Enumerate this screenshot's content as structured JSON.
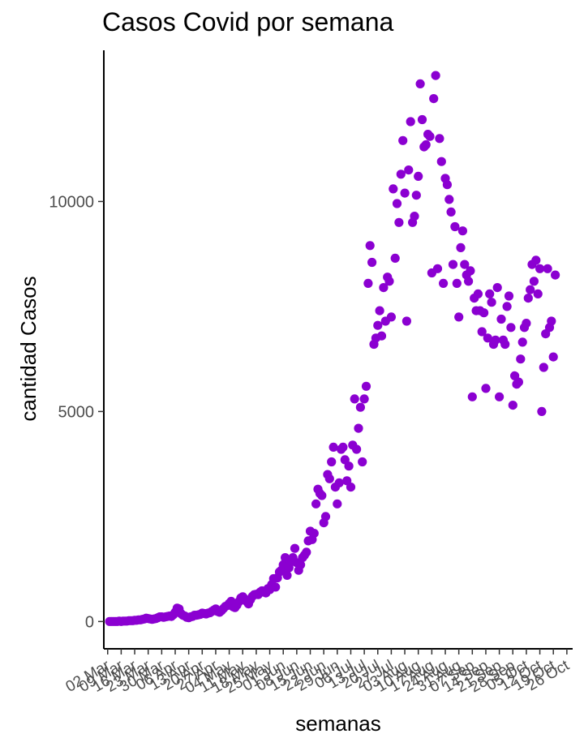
{
  "chart_data": {
    "type": "scatter",
    "title": "Casos Covid por semana",
    "xlabel": "semanas",
    "ylabel": "cantidad Casos",
    "point_color": "#8B00D1",
    "grid": false,
    "legend": "none",
    "xlim": [
      "2020-02-29",
      "2020-10-29"
    ],
    "ylim": [
      -650,
      13600
    ],
    "y_ticks": [
      0,
      5000,
      10000
    ],
    "y_tick_labels": [
      "0",
      "5000",
      "10000"
    ],
    "x_ticks": [
      "2020-03-02",
      "2020-03-09",
      "2020-03-16",
      "2020-03-23",
      "2020-03-30",
      "2020-04-06",
      "2020-04-13",
      "2020-04-20",
      "2020-04-27",
      "2020-05-04",
      "2020-05-11",
      "2020-05-18",
      "2020-05-25",
      "2020-06-01",
      "2020-06-08",
      "2020-06-15",
      "2020-06-22",
      "2020-06-29",
      "2020-07-06",
      "2020-07-13",
      "2020-07-20",
      "2020-07-27",
      "2020-08-03",
      "2020-08-10",
      "2020-08-17",
      "2020-08-24",
      "2020-08-31",
      "2020-09-07",
      "2020-09-14",
      "2020-09-21",
      "2020-09-28",
      "2020-10-05",
      "2020-10-12",
      "2020-10-19",
      "2020-10-26"
    ],
    "x_tick_labels": [
      "02 Mar",
      "09 Mar",
      "16 Mar",
      "23 Mar",
      "30 Mar",
      "06 Apr",
      "13 Apr",
      "20 Apr",
      "27 Apr",
      "04 May",
      "11 May",
      "18 May",
      "25 May",
      "01 Jun",
      "08 Jun",
      "15 Jun",
      "22 Jun",
      "29 Jun",
      "06 Jul",
      "13 Jul",
      "20 Jul",
      "27 Jul",
      "03 Aug",
      "10 Aug",
      "17 Aug",
      "24 Aug",
      "31 Aug",
      "07 Sep",
      "14 Sep",
      "21 Sep",
      "28 Sep",
      "05 Oct",
      "12 Oct",
      "19 Oct",
      "26 Oct"
    ],
    "series": [
      {
        "points": [
          [
            "2020-03-03",
            0
          ],
          [
            "2020-03-04",
            0
          ],
          [
            "2020-03-05",
            0
          ],
          [
            "2020-03-06",
            0
          ],
          [
            "2020-03-07",
            0
          ],
          [
            "2020-03-08",
            10
          ],
          [
            "2020-03-09",
            0
          ],
          [
            "2020-03-10",
            10
          ],
          [
            "2020-03-11",
            10
          ],
          [
            "2020-03-12",
            10
          ],
          [
            "2020-03-13",
            20
          ],
          [
            "2020-03-14",
            20
          ],
          [
            "2020-03-15",
            20
          ],
          [
            "2020-03-16",
            30
          ],
          [
            "2020-03-17",
            30
          ],
          [
            "2020-03-18",
            40
          ],
          [
            "2020-03-19",
            40
          ],
          [
            "2020-03-20",
            50
          ],
          [
            "2020-03-21",
            60
          ],
          [
            "2020-03-22",
            80
          ],
          [
            "2020-03-23",
            70
          ],
          [
            "2020-03-24",
            60
          ],
          [
            "2020-03-25",
            50
          ],
          [
            "2020-03-26",
            60
          ],
          [
            "2020-03-27",
            70
          ],
          [
            "2020-03-28",
            90
          ],
          [
            "2020-03-29",
            110
          ],
          [
            "2020-03-30",
            110
          ],
          [
            "2020-03-31",
            100
          ],
          [
            "2020-04-01",
            110
          ],
          [
            "2020-04-02",
            120
          ],
          [
            "2020-04-03",
            130
          ],
          [
            "2020-04-04",
            120
          ],
          [
            "2020-04-05",
            160
          ],
          [
            "2020-04-06",
            220
          ],
          [
            "2020-04-07",
            320
          ],
          [
            "2020-04-08",
            300
          ],
          [
            "2020-04-09",
            190
          ],
          [
            "2020-04-10",
            150
          ],
          [
            "2020-04-11",
            130
          ],
          [
            "2020-04-12",
            100
          ],
          [
            "2020-04-13",
            90
          ],
          [
            "2020-04-14",
            110
          ],
          [
            "2020-04-15",
            120
          ],
          [
            "2020-04-16",
            150
          ],
          [
            "2020-04-17",
            150
          ],
          [
            "2020-04-18",
            160
          ],
          [
            "2020-04-19",
            170
          ],
          [
            "2020-04-20",
            200
          ],
          [
            "2020-04-21",
            190
          ],
          [
            "2020-04-22",
            180
          ],
          [
            "2020-04-23",
            200
          ],
          [
            "2020-04-24",
            210
          ],
          [
            "2020-04-25",
            240
          ],
          [
            "2020-04-26",
            270
          ],
          [
            "2020-04-27",
            300
          ],
          [
            "2020-04-28",
            240
          ],
          [
            "2020-04-29",
            220
          ],
          [
            "2020-04-30",
            260
          ],
          [
            "2020-05-01",
            310
          ],
          [
            "2020-05-02",
            360
          ],
          [
            "2020-05-03",
            380
          ],
          [
            "2020-05-04",
            430
          ],
          [
            "2020-05-05",
            480
          ],
          [
            "2020-05-06",
            350
          ],
          [
            "2020-05-07",
            330
          ],
          [
            "2020-05-08",
            390
          ],
          [
            "2020-05-09",
            470
          ],
          [
            "2020-05-10",
            560
          ],
          [
            "2020-05-11",
            590
          ],
          [
            "2020-05-12",
            540
          ],
          [
            "2020-05-13",
            480
          ],
          [
            "2020-05-14",
            420
          ],
          [
            "2020-05-15",
            520
          ],
          [
            "2020-05-16",
            600
          ],
          [
            "2020-05-17",
            640
          ],
          [
            "2020-05-18",
            650
          ],
          [
            "2020-05-19",
            640
          ],
          [
            "2020-05-20",
            700
          ],
          [
            "2020-05-21",
            730
          ],
          [
            "2020-05-22",
            700
          ],
          [
            "2020-05-23",
            680
          ],
          [
            "2020-05-24",
            780
          ],
          [
            "2020-05-25",
            760
          ],
          [
            "2020-05-26",
            880
          ],
          [
            "2020-05-27",
            1020
          ],
          [
            "2020-05-28",
            820
          ],
          [
            "2020-05-29",
            1040
          ],
          [
            "2020-05-30",
            1180
          ],
          [
            "2020-05-31",
            1220
          ],
          [
            "2020-06-01",
            1350
          ],
          [
            "2020-06-02",
            1520
          ],
          [
            "2020-06-03",
            1100
          ],
          [
            "2020-06-04",
            1280
          ],
          [
            "2020-06-05",
            1420
          ],
          [
            "2020-06-06",
            1520
          ],
          [
            "2020-06-07",
            1740
          ],
          [
            "2020-06-08",
            1400
          ],
          [
            "2020-06-09",
            1220
          ],
          [
            "2020-06-10",
            1350
          ],
          [
            "2020-06-11",
            1520
          ],
          [
            "2020-06-12",
            1580
          ],
          [
            "2020-06-13",
            1650
          ],
          [
            "2020-06-14",
            1920
          ],
          [
            "2020-06-15",
            2150
          ],
          [
            "2020-06-16",
            1950
          ],
          [
            "2020-06-17",
            2100
          ],
          [
            "2020-06-18",
            2800
          ],
          [
            "2020-06-19",
            3150
          ],
          [
            "2020-06-20",
            3050
          ],
          [
            "2020-06-21",
            3000
          ],
          [
            "2020-06-22",
            2350
          ],
          [
            "2020-06-23",
            2500
          ],
          [
            "2020-06-24",
            3500
          ],
          [
            "2020-06-25",
            3400
          ],
          [
            "2020-06-26",
            3800
          ],
          [
            "2020-06-27",
            4150
          ],
          [
            "2020-06-28",
            3200
          ],
          [
            "2020-06-29",
            2800
          ],
          [
            "2020-06-30",
            3300
          ],
          [
            "2020-07-01",
            4100
          ],
          [
            "2020-07-02",
            4150
          ],
          [
            "2020-07-03",
            3850
          ],
          [
            "2020-07-04",
            3350
          ],
          [
            "2020-07-05",
            3700
          ],
          [
            "2020-07-06",
            3200
          ],
          [
            "2020-07-07",
            4200
          ],
          [
            "2020-07-08",
            5300
          ],
          [
            "2020-07-09",
            4100
          ],
          [
            "2020-07-10",
            4600
          ],
          [
            "2020-07-11",
            5100
          ],
          [
            "2020-07-12",
            3800
          ],
          [
            "2020-07-13",
            5300
          ],
          [
            "2020-07-14",
            5600
          ],
          [
            "2020-07-15",
            8050
          ],
          [
            "2020-07-16",
            8950
          ],
          [
            "2020-07-17",
            8550
          ],
          [
            "2020-07-18",
            6600
          ],
          [
            "2020-07-19",
            6750
          ],
          [
            "2020-07-20",
            7050
          ],
          [
            "2020-07-21",
            7400
          ],
          [
            "2020-07-22",
            6800
          ],
          [
            "2020-07-23",
            7950
          ],
          [
            "2020-07-24",
            7150
          ],
          [
            "2020-07-25",
            8200
          ],
          [
            "2020-07-26",
            8100
          ],
          [
            "2020-07-27",
            7250
          ],
          [
            "2020-07-28",
            10300
          ],
          [
            "2020-07-29",
            8650
          ],
          [
            "2020-07-30",
            9950
          ],
          [
            "2020-07-31",
            9500
          ],
          [
            "2020-08-01",
            10650
          ],
          [
            "2020-08-02",
            11450
          ],
          [
            "2020-08-03",
            10200
          ],
          [
            "2020-08-04",
            7150
          ],
          [
            "2020-08-05",
            10750
          ],
          [
            "2020-08-06",
            11900
          ],
          [
            "2020-08-07",
            9500
          ],
          [
            "2020-08-08",
            9650
          ],
          [
            "2020-08-09",
            10150
          ],
          [
            "2020-08-10",
            10600
          ],
          [
            "2020-08-11",
            12800
          ],
          [
            "2020-08-12",
            11950
          ],
          [
            "2020-08-13",
            11300
          ],
          [
            "2020-08-14",
            11350
          ],
          [
            "2020-08-15",
            11600
          ],
          [
            "2020-08-16",
            11550
          ],
          [
            "2020-08-17",
            8300
          ],
          [
            "2020-08-18",
            12450
          ],
          [
            "2020-08-19",
            13000
          ],
          [
            "2020-08-20",
            8400
          ],
          [
            "2020-08-21",
            11500
          ],
          [
            "2020-08-22",
            10950
          ],
          [
            "2020-08-23",
            8050
          ],
          [
            "2020-08-24",
            10550
          ],
          [
            "2020-08-25",
            10400
          ],
          [
            "2020-08-26",
            10050
          ],
          [
            "2020-08-27",
            9750
          ],
          [
            "2020-08-28",
            8500
          ],
          [
            "2020-08-29",
            9400
          ],
          [
            "2020-08-30",
            8050
          ],
          [
            "2020-08-31",
            7250
          ],
          [
            "2020-09-01",
            8900
          ],
          [
            "2020-09-02",
            9300
          ],
          [
            "2020-09-03",
            8500
          ],
          [
            "2020-09-04",
            8250
          ],
          [
            "2020-09-05",
            8100
          ],
          [
            "2020-09-06",
            8350
          ],
          [
            "2020-09-07",
            5350
          ],
          [
            "2020-09-08",
            7700
          ],
          [
            "2020-09-09",
            7400
          ],
          [
            "2020-09-10",
            7800
          ],
          [
            "2020-09-11",
            7400
          ],
          [
            "2020-09-12",
            6900
          ],
          [
            "2020-09-13",
            7350
          ],
          [
            "2020-09-14",
            5550
          ],
          [
            "2020-09-15",
            6750
          ],
          [
            "2020-09-16",
            7800
          ],
          [
            "2020-09-17",
            7600
          ],
          [
            "2020-09-18",
            6600
          ],
          [
            "2020-09-19",
            6700
          ],
          [
            "2020-09-20",
            7950
          ],
          [
            "2020-09-21",
            5350
          ],
          [
            "2020-09-22",
            7200
          ],
          [
            "2020-09-23",
            6700
          ],
          [
            "2020-09-24",
            6600
          ],
          [
            "2020-09-25",
            7500
          ],
          [
            "2020-09-26",
            7750
          ],
          [
            "2020-09-27",
            7000
          ],
          [
            "2020-09-28",
            5150
          ],
          [
            "2020-09-29",
            5850
          ],
          [
            "2020-09-30",
            5650
          ],
          [
            "2020-10-01",
            5700
          ],
          [
            "2020-10-02",
            6250
          ],
          [
            "2020-10-03",
            6650
          ],
          [
            "2020-10-04",
            7000
          ],
          [
            "2020-10-05",
            7100
          ],
          [
            "2020-10-06",
            7700
          ],
          [
            "2020-10-07",
            7900
          ],
          [
            "2020-10-08",
            8500
          ],
          [
            "2020-10-09",
            8100
          ],
          [
            "2020-10-10",
            8600
          ],
          [
            "2020-10-11",
            7800
          ],
          [
            "2020-10-12",
            8400
          ],
          [
            "2020-10-13",
            5000
          ],
          [
            "2020-10-14",
            6050
          ],
          [
            "2020-10-15",
            6850
          ],
          [
            "2020-10-16",
            8400
          ],
          [
            "2020-10-17",
            7000
          ],
          [
            "2020-10-18",
            7150
          ],
          [
            "2020-10-19",
            6300
          ],
          [
            "2020-10-20",
            8250
          ]
        ]
      }
    ]
  }
}
